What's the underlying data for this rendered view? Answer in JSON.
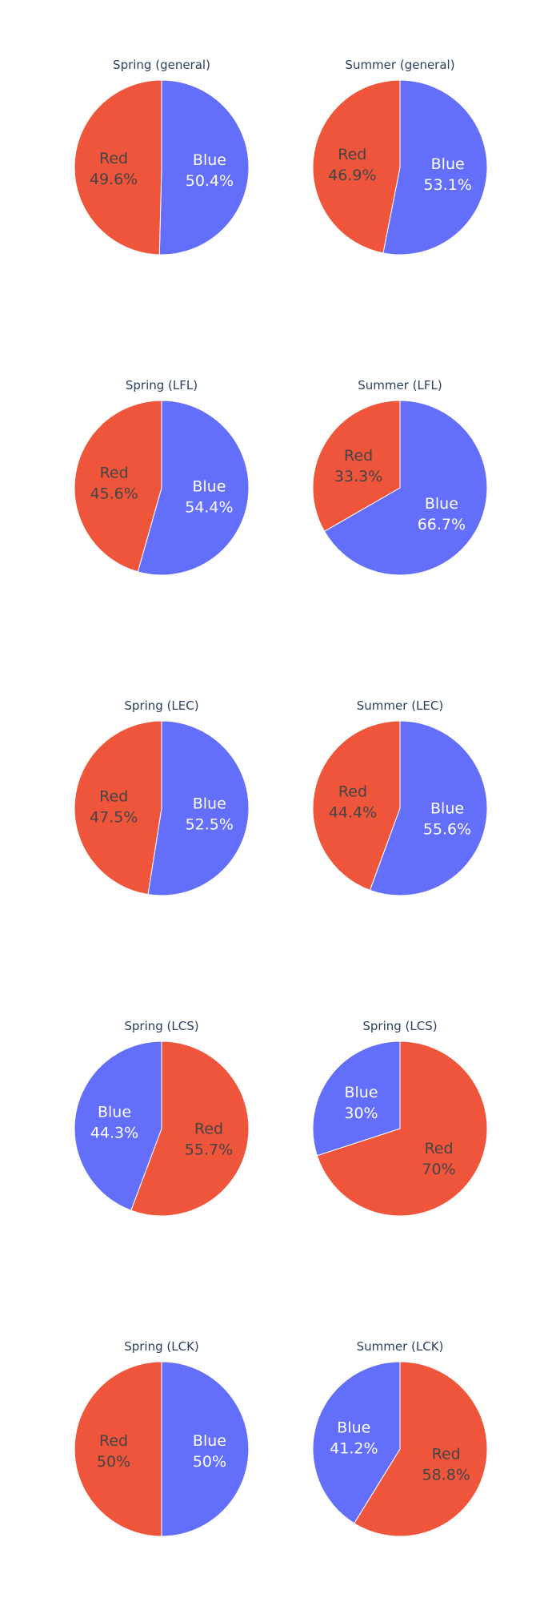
{
  "colors": {
    "Blue": "#636efa",
    "Red": "#ef553b",
    "label_on_blue": "#ffffff",
    "label_on_red": "#444444",
    "title": "#2a3f5f",
    "background": "#ffffff"
  },
  "chart_data": [
    {
      "type": "pie",
      "title": "Spring (general)",
      "slices": [
        {
          "label": "Blue",
          "value": 50.4,
          "text": "50.4%"
        },
        {
          "label": "Red",
          "value": 49.6,
          "text": "49.6%"
        }
      ]
    },
    {
      "type": "pie",
      "title": "Summer (general)",
      "slices": [
        {
          "label": "Blue",
          "value": 53.1,
          "text": "53.1%"
        },
        {
          "label": "Red",
          "value": 46.9,
          "text": "46.9%"
        }
      ]
    },
    {
      "type": "pie",
      "title": "Spring (LFL)",
      "slices": [
        {
          "label": "Blue",
          "value": 54.4,
          "text": "54.4%"
        },
        {
          "label": "Red",
          "value": 45.6,
          "text": "45.6%"
        }
      ]
    },
    {
      "type": "pie",
      "title": "Summer (LFL)",
      "slices": [
        {
          "label": "Blue",
          "value": 66.7,
          "text": "66.7%"
        },
        {
          "label": "Red",
          "value": 33.3,
          "text": "33.3%"
        }
      ]
    },
    {
      "type": "pie",
      "title": "Spring (LEC)",
      "slices": [
        {
          "label": "Blue",
          "value": 52.5,
          "text": "52.5%"
        },
        {
          "label": "Red",
          "value": 47.5,
          "text": "47.5%"
        }
      ]
    },
    {
      "type": "pie",
      "title": "Summer (LEC)",
      "slices": [
        {
          "label": "Blue",
          "value": 55.6,
          "text": "55.6%"
        },
        {
          "label": "Red",
          "value": 44.4,
          "text": "44.4%"
        }
      ]
    },
    {
      "type": "pie",
      "title": "Spring (LCS)",
      "slices": [
        {
          "label": "Red",
          "value": 55.7,
          "text": "55.7%"
        },
        {
          "label": "Blue",
          "value": 44.3,
          "text": "44.3%"
        }
      ]
    },
    {
      "type": "pie",
      "title": "Spring (LCS)",
      "slices": [
        {
          "label": "Red",
          "value": 70,
          "text": "70%"
        },
        {
          "label": "Blue",
          "value": 30,
          "text": "30%"
        }
      ]
    },
    {
      "type": "pie",
      "title": "Spring (LCK)",
      "slices": [
        {
          "label": "Blue",
          "value": 50,
          "text": "50%"
        },
        {
          "label": "Red",
          "value": 50,
          "text": "50%"
        }
      ]
    },
    {
      "type": "pie",
      "title": "Summer (LCK)",
      "slices": [
        {
          "label": "Red",
          "value": 58.8,
          "text": "58.8%"
        },
        {
          "label": "Blue",
          "value": 41.2,
          "text": "41.2%"
        }
      ]
    }
  ]
}
